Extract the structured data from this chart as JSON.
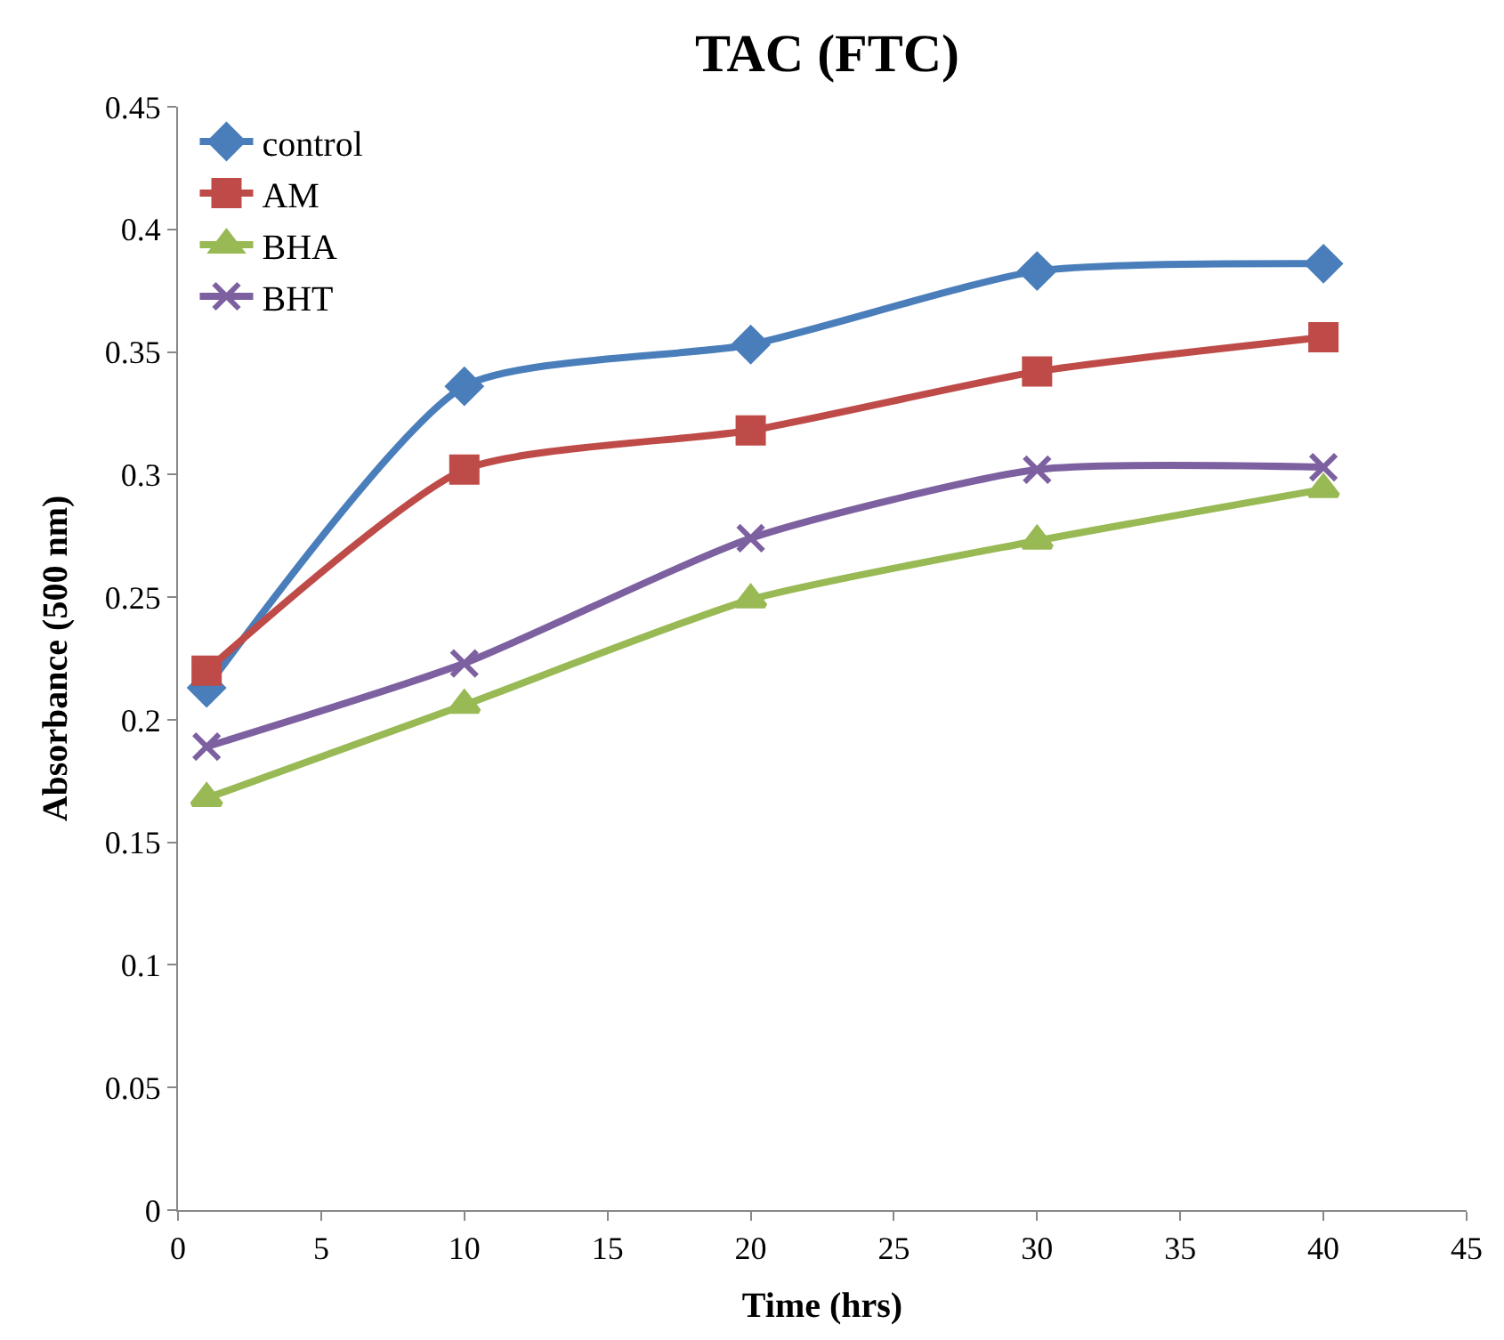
{
  "chart_data": {
    "type": "line",
    "title": "TAC (FTC)",
    "xlabel": "Time (hrs)",
    "ylabel": "Absorbance (500 nm)",
    "x": [
      1,
      10,
      20,
      30,
      40
    ],
    "series": [
      {
        "name": "control",
        "color": "#4a7ebb",
        "marker": "diamond",
        "values": [
          0.213,
          0.336,
          0.353,
          0.383,
          0.386
        ]
      },
      {
        "name": "AM",
        "color": "#be4b48",
        "marker": "square",
        "values": [
          0.22,
          0.302,
          0.318,
          0.342,
          0.356
        ]
      },
      {
        "name": "BHA",
        "color": "#98b954",
        "marker": "triangle",
        "values": [
          0.168,
          0.206,
          0.249,
          0.273,
          0.294
        ]
      },
      {
        "name": "BHT",
        "color": "#7d60a0",
        "marker": "cross",
        "values": [
          0.189,
          0.223,
          0.274,
          0.302,
          0.303
        ]
      }
    ],
    "xlim": [
      0,
      45
    ],
    "xticks": [
      0,
      5,
      10,
      15,
      20,
      25,
      30,
      35,
      40,
      45
    ],
    "ylim": [
      0,
      0.45
    ],
    "yticks": [
      0,
      0.05,
      0.1,
      0.15,
      0.2,
      0.25,
      0.3,
      0.35,
      0.4,
      0.45
    ],
    "legend": "top left"
  }
}
